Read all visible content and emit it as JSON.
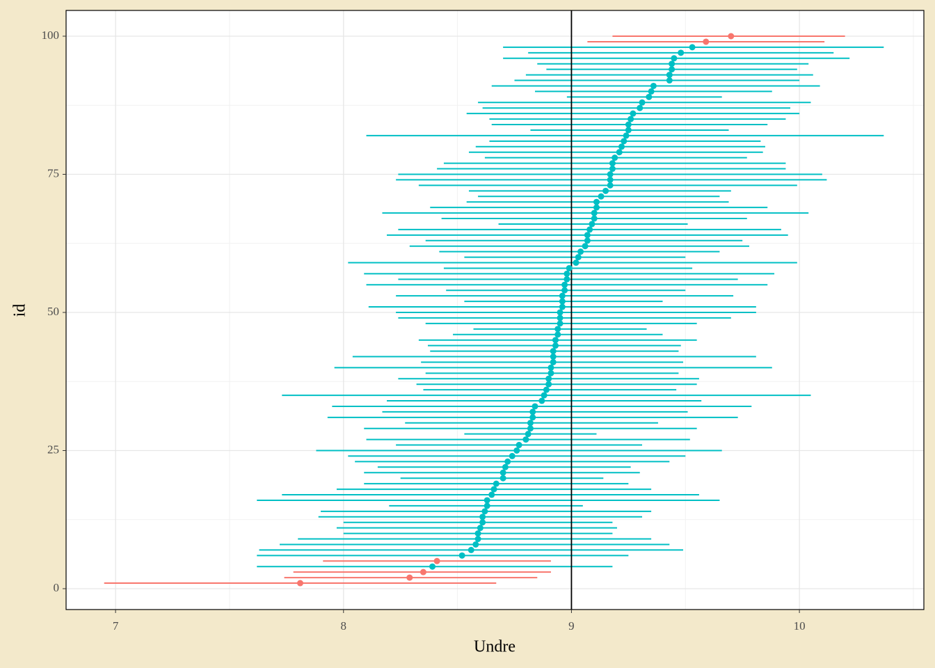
{
  "chart_data": {
    "type": "errorbar",
    "x_label": "Undre",
    "y_label": "id",
    "xlim": [
      6.783,
      10.546
    ],
    "xticks": [
      7,
      8,
      9,
      10
    ],
    "xminor": [
      7.5,
      8.5,
      9.5,
      10.5
    ],
    "ylim": [
      -3.78,
      104.66
    ],
    "yticks": [
      0,
      25,
      50,
      75,
      100
    ],
    "yminor": [
      12.5,
      37.5,
      62.5,
      87.5
    ],
    "grid": true,
    "vline": 9,
    "y": [
      1,
      2,
      3,
      4,
      5,
      6,
      7,
      8,
      9,
      10,
      11,
      12,
      13,
      14,
      15,
      16,
      17,
      18,
      19,
      20,
      21,
      22,
      23,
      24,
      25,
      26,
      27,
      28,
      29,
      30,
      31,
      32,
      33,
      34,
      35,
      36,
      37,
      38,
      39,
      40,
      41,
      42,
      43,
      44,
      45,
      46,
      47,
      48,
      49,
      50,
      51,
      52,
      53,
      54,
      55,
      56,
      57,
      58,
      59,
      60,
      61,
      62,
      63,
      64,
      65,
      66,
      67,
      68,
      69,
      70,
      71,
      72,
      73,
      74,
      75,
      76,
      77,
      78,
      79,
      80,
      81,
      82,
      83,
      84,
      85,
      86,
      87,
      88,
      89,
      90,
      91,
      92,
      93,
      94,
      95,
      96,
      97,
      98,
      99,
      100
    ],
    "values": [
      7.81,
      8.29,
      8.35,
      8.39,
      8.41,
      8.52,
      8.56,
      8.58,
      8.59,
      8.59,
      8.6,
      8.61,
      8.61,
      8.62,
      8.63,
      8.63,
      8.65,
      8.66,
      8.67,
      8.7,
      8.7,
      8.71,
      8.72,
      8.74,
      8.76,
      8.77,
      8.8,
      8.81,
      8.82,
      8.82,
      8.83,
      8.83,
      8.84,
      8.87,
      8.88,
      8.89,
      8.9,
      8.9,
      8.91,
      8.91,
      8.92,
      8.92,
      8.92,
      8.93,
      8.93,
      8.94,
      8.94,
      8.95,
      8.95,
      8.95,
      8.96,
      8.96,
      8.96,
      8.97,
      8.97,
      8.98,
      8.98,
      8.99,
      9.02,
      9.03,
      9.04,
      9.06,
      9.07,
      9.07,
      9.08,
      9.09,
      9.1,
      9.1,
      9.11,
      9.11,
      9.13,
      9.15,
      9.17,
      9.17,
      9.17,
      9.18,
      9.18,
      9.19,
      9.21,
      9.22,
      9.23,
      9.24,
      9.25,
      9.25,
      9.26,
      9.27,
      9.3,
      9.31,
      9.34,
      9.35,
      9.36,
      9.43,
      9.43,
      9.44,
      9.44,
      9.45,
      9.48,
      9.53,
      9.59,
      9.7
    ],
    "lower": [
      6.95,
      7.74,
      7.78,
      7.62,
      7.91,
      7.62,
      7.63,
      7.72,
      7.8,
      8.0,
      7.97,
      8.0,
      7.89,
      7.9,
      8.2,
      7.62,
      7.73,
      7.97,
      8.09,
      8.25,
      8.09,
      8.15,
      8.05,
      8.02,
      7.88,
      8.23,
      8.1,
      8.53,
      8.09,
      8.27,
      7.93,
      8.17,
      7.95,
      8.19,
      7.73,
      8.35,
      8.32,
      8.24,
      8.36,
      7.96,
      8.34,
      8.04,
      8.38,
      8.37,
      8.33,
      8.48,
      8.57,
      8.36,
      8.24,
      8.23,
      8.11,
      8.53,
      8.23,
      8.45,
      8.1,
      8.24,
      8.09,
      8.44,
      8.02,
      8.53,
      8.42,
      8.29,
      8.36,
      8.19,
      8.24,
      8.68,
      8.43,
      8.17,
      8.38,
      8.54,
      8.59,
      8.55,
      8.33,
      8.23,
      8.24,
      8.41,
      8.44,
      8.62,
      8.55,
      8.58,
      8.64,
      8.1,
      8.82,
      8.65,
      8.64,
      8.54,
      8.61,
      8.59,
      8.98,
      8.84,
      8.65,
      8.75,
      8.8,
      8.89,
      8.85,
      8.7,
      8.81,
      8.7,
      9.07,
      9.18
    ],
    "upper": [
      8.67,
      8.85,
      8.91,
      9.18,
      8.91,
      9.25,
      9.49,
      9.43,
      9.35,
      9.18,
      9.2,
      9.18,
      9.31,
      9.35,
      9.05,
      9.65,
      9.56,
      9.35,
      9.25,
      9.14,
      9.3,
      9.26,
      9.43,
      9.5,
      9.66,
      9.31,
      9.52,
      9.11,
      9.55,
      9.38,
      9.73,
      9.51,
      9.79,
      9.57,
      10.05,
      9.46,
      9.55,
      9.56,
      9.47,
      9.88,
      9.49,
      9.81,
      9.47,
      9.48,
      9.55,
      9.4,
      9.33,
      9.55,
      9.7,
      9.81,
      9.81,
      9.4,
      9.71,
      9.5,
      9.86,
      9.73,
      9.89,
      9.53,
      9.99,
      9.5,
      9.65,
      9.78,
      9.75,
      9.95,
      9.92,
      9.51,
      9.77,
      10.04,
      9.86,
      9.69,
      9.65,
      9.7,
      9.99,
      10.12,
      10.1,
      9.94,
      9.94,
      9.77,
      9.84,
      9.85,
      9.83,
      10.37,
      9.69,
      9.86,
      9.94,
      10.0,
      9.96,
      10.05,
      9.66,
      9.88,
      10.09,
      10.0,
      10.06,
      9.99,
      10.04,
      10.22,
      10.15,
      10.37,
      10.11,
      10.2
    ],
    "colors": [
      "#f8766d",
      "#f8766d",
      "#f8766d",
      "#00bfc4",
      "#f8766d",
      "#00bfc4",
      "#00bfc4",
      "#00bfc4",
      "#00bfc4",
      "#00bfc4",
      "#00bfc4",
      "#00bfc4",
      "#00bfc4",
      "#00bfc4",
      "#00bfc4",
      "#00bfc4",
      "#00bfc4",
      "#00bfc4",
      "#00bfc4",
      "#00bfc4",
      "#00bfc4",
      "#00bfc4",
      "#00bfc4",
      "#00bfc4",
      "#00bfc4",
      "#00bfc4",
      "#00bfc4",
      "#00bfc4",
      "#00bfc4",
      "#00bfc4",
      "#00bfc4",
      "#00bfc4",
      "#00bfc4",
      "#00bfc4",
      "#00bfc4",
      "#00bfc4",
      "#00bfc4",
      "#00bfc4",
      "#00bfc4",
      "#00bfc4",
      "#00bfc4",
      "#00bfc4",
      "#00bfc4",
      "#00bfc4",
      "#00bfc4",
      "#00bfc4",
      "#00bfc4",
      "#00bfc4",
      "#00bfc4",
      "#00bfc4",
      "#00bfc4",
      "#00bfc4",
      "#00bfc4",
      "#00bfc4",
      "#00bfc4",
      "#00bfc4",
      "#00bfc4",
      "#00bfc4",
      "#00bfc4",
      "#00bfc4",
      "#00bfc4",
      "#00bfc4",
      "#00bfc4",
      "#00bfc4",
      "#00bfc4",
      "#00bfc4",
      "#00bfc4",
      "#00bfc4",
      "#00bfc4",
      "#00bfc4",
      "#00bfc4",
      "#00bfc4",
      "#00bfc4",
      "#00bfc4",
      "#00bfc4",
      "#00bfc4",
      "#00bfc4",
      "#00bfc4",
      "#00bfc4",
      "#00bfc4",
      "#00bfc4",
      "#00bfc4",
      "#00bfc4",
      "#00bfc4",
      "#00bfc4",
      "#00bfc4",
      "#00bfc4",
      "#00bfc4",
      "#00bfc4",
      "#00bfc4",
      "#00bfc4",
      "#00bfc4",
      "#00bfc4",
      "#00bfc4",
      "#00bfc4",
      "#00bfc4",
      "#00bfc4",
      "#00bfc4",
      "#f8766d",
      "#f8766d"
    ]
  }
}
